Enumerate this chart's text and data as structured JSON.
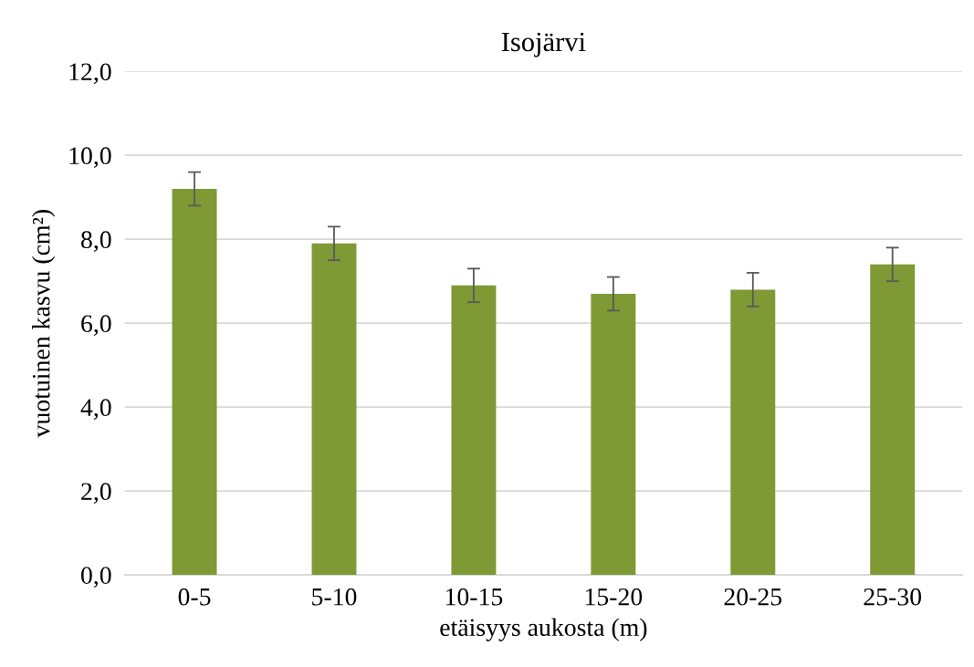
{
  "chart_data": {
    "type": "bar",
    "title": "Isojärvi",
    "xlabel": "etäisyys aukosta (m)",
    "ylabel": "vuotuinen kasvu (cm²)",
    "categories": [
      "0-5",
      "5-10",
      "10-15",
      "15-20",
      "20-25",
      "25-30"
    ],
    "values": [
      9.2,
      7.9,
      6.9,
      6.7,
      6.8,
      7.4
    ],
    "errors": [
      0.4,
      0.4,
      0.4,
      0.4,
      0.4,
      0.4
    ],
    "color": "#7f9934",
    "ylim": [
      0,
      12
    ],
    "yticks": [
      {
        "value": 0,
        "label": "0,0"
      },
      {
        "value": 2,
        "label": "2,0"
      },
      {
        "value": 4,
        "label": "4,0"
      },
      {
        "value": 6,
        "label": "6,0"
      },
      {
        "value": 8,
        "label": "8,0"
      },
      {
        "value": 10,
        "label": "10,0"
      },
      {
        "value": 12,
        "label": "12,0"
      }
    ],
    "grid": "y"
  }
}
